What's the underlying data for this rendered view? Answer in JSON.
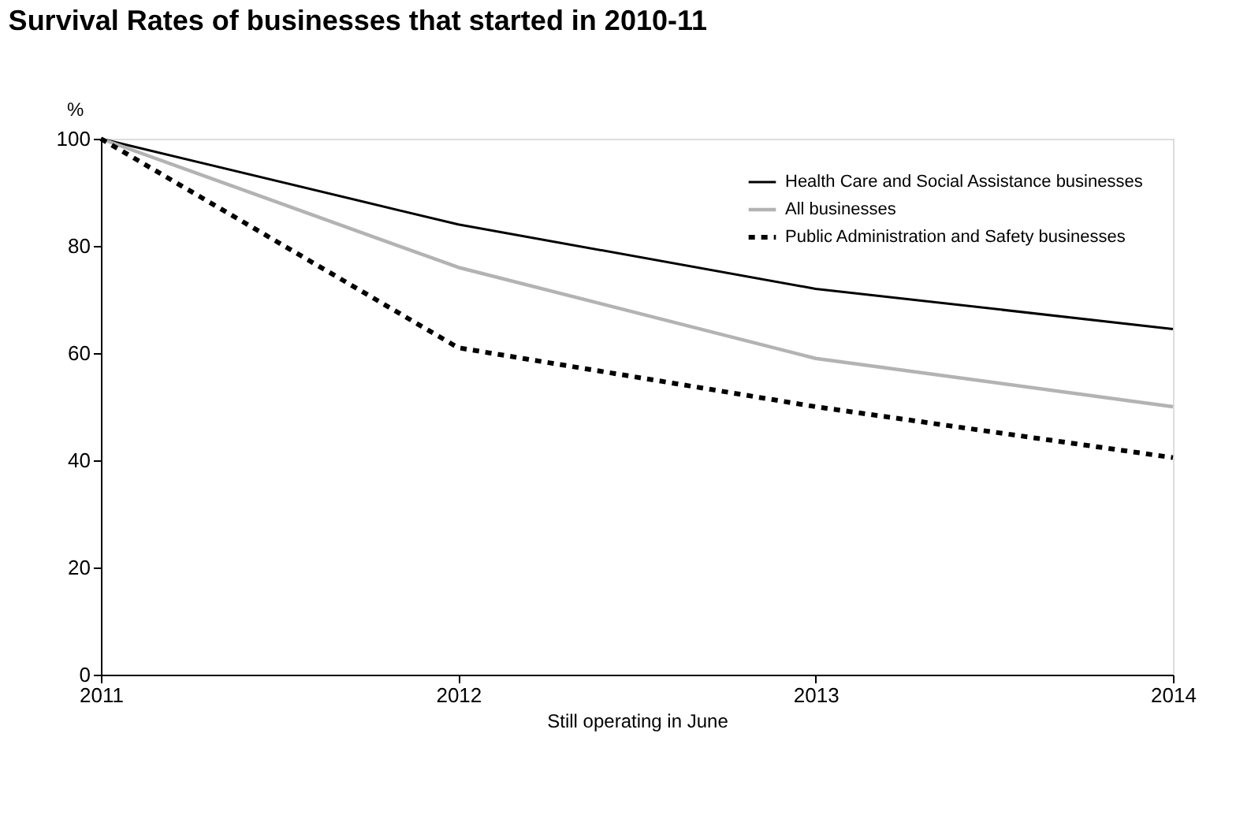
{
  "chart_data": {
    "type": "line",
    "title": "Survival Rates of businesses that started in 2010-11",
    "xlabel": "Still operating in June",
    "ylabel": "%",
    "x": [
      2011,
      2012,
      2013,
      2014
    ],
    "xlim": [
      2011,
      2014
    ],
    "xticks": [
      2011,
      2012,
      2013,
      2014
    ],
    "ylim": [
      0,
      100
    ],
    "yticks": [
      0,
      20,
      40,
      60,
      80,
      100
    ],
    "grid": false,
    "legend": "top right",
    "marker": "none",
    "series": [
      {
        "name": "Health Care and Social Assistance businesses",
        "color": "#000000",
        "line_style": "solid",
        "values": [
          100,
          84,
          72,
          64.5
        ]
      },
      {
        "name": "All businesses",
        "color": "#b3b3b3",
        "line_style": "solid",
        "values": [
          100,
          76,
          59,
          50
        ]
      },
      {
        "name": "Public Administration and Safety businesses",
        "color": "#000000",
        "line_style": "dashed",
        "values": [
          100,
          61,
          50,
          40.5
        ]
      }
    ]
  }
}
